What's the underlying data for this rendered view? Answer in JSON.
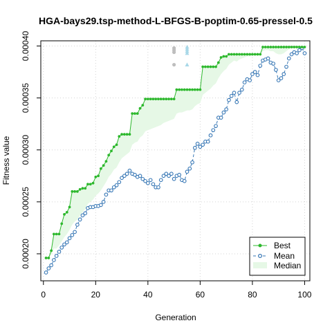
{
  "chart_data": {
    "type": "line",
    "title": "HGA-bays29.tsp-method-L-BFGS-B-poptim-0.65-pressel-0.5",
    "xlabel": "Generation",
    "ylabel": "Fitness value",
    "xlim": [
      -1,
      102
    ],
    "ylim": [
      0.000174,
      0.000405
    ],
    "x_ticks": [
      0,
      20,
      40,
      60,
      80,
      100
    ],
    "x_tick_labels": [
      "0",
      "20",
      "40",
      "60",
      "80",
      "100"
    ],
    "y_ticks": [
      0.0002,
      0.00025,
      0.0003,
      0.00035,
      0.0004
    ],
    "y_tick_labels": [
      "0.00020",
      "0.00025",
      "0.00030",
      "0.00035",
      "0.00040"
    ],
    "grid": true,
    "legend_position": "bottom-right",
    "legend": [
      {
        "label": "Best",
        "color": "#2db82d"
      },
      {
        "label": "Mean",
        "color": "#3777b5"
      },
      {
        "label": "Median",
        "color": "#e6f8e6"
      }
    ],
    "x": [
      1,
      2,
      3,
      4,
      5,
      6,
      7,
      8,
      9,
      10,
      11,
      12,
      13,
      14,
      15,
      16,
      17,
      18,
      19,
      20,
      21,
      22,
      23,
      24,
      25,
      26,
      27,
      28,
      29,
      30,
      31,
      32,
      33,
      34,
      35,
      36,
      37,
      38,
      39,
      40,
      41,
      42,
      43,
      44,
      45,
      46,
      47,
      48,
      49,
      50,
      51,
      52,
      53,
      54,
      55,
      56,
      57,
      58,
      59,
      60,
      61,
      62,
      63,
      64,
      65,
      66,
      67,
      68,
      69,
      70,
      71,
      72,
      73,
      74,
      75,
      76,
      77,
      78,
      79,
      80,
      81,
      82,
      83,
      84,
      85,
      86,
      87,
      88,
      89,
      90,
      91,
      92,
      93,
      94,
      95,
      96,
      97,
      98,
      99,
      100
    ],
    "series": [
      {
        "name": "Best",
        "color": "#2db82d",
        "values": [
          0.000196,
          0.000196,
          0.000203,
          0.000219,
          0.000219,
          0.000219,
          0.000229,
          0.000238,
          0.00024,
          0.000245,
          0.00026,
          0.00026,
          0.00026,
          0.000262,
          0.000263,
          0.000263,
          0.000267,
          0.000267,
          0.000268,
          0.000274,
          0.000275,
          0.000282,
          0.000285,
          0.000289,
          0.000295,
          0.000299,
          0.000303,
          0.000305,
          0.000313,
          0.000315,
          0.000315,
          0.000315,
          0.000315,
          0.000335,
          0.000335,
          0.000335,
          0.00034,
          0.000343,
          0.000349,
          0.000349,
          0.000349,
          0.000349,
          0.000349,
          0.000349,
          0.000349,
          0.000349,
          0.000349,
          0.000349,
          0.000349,
          0.000349,
          0.000358,
          0.000358,
          0.000358,
          0.000358,
          0.000358,
          0.000358,
          0.000358,
          0.000358,
          0.000358,
          0.000358,
          0.00038,
          0.00038,
          0.00038,
          0.00038,
          0.00038,
          0.00038,
          0.000384,
          0.000389,
          0.00039,
          0.00039,
          0.000392,
          0.000392,
          0.000392,
          0.000392,
          0.000392,
          0.000392,
          0.000392,
          0.000392,
          0.000392,
          0.000392,
          0.000392,
          0.000392,
          0.000392,
          0.000399,
          0.000399,
          0.000399,
          0.000399,
          0.000399,
          0.000399,
          0.000399,
          0.000399,
          0.000399,
          0.000399,
          0.000399,
          0.000399,
          0.000399,
          0.000399,
          0.000399,
          0.000399,
          0.000399
        ]
      },
      {
        "name": "Mean",
        "color": "#3777b5",
        "values": [
          0.000182,
          0.000186,
          0.000189,
          0.000194,
          0.000198,
          0.000202,
          0.000206,
          0.000209,
          0.000211,
          0.000215,
          0.000218,
          0.000221,
          0.000228,
          0.000233,
          0.000237,
          0.000239,
          0.000244,
          0.000245,
          0.000245,
          0.000246,
          0.000246,
          0.000247,
          0.00025,
          0.000257,
          0.000261,
          0.000261,
          0.000264,
          0.000266,
          0.000269,
          0.000273,
          0.000275,
          0.000277,
          0.00028,
          0.000277,
          0.000276,
          0.000274,
          0.000275,
          0.000272,
          0.00027,
          0.000268,
          0.000271,
          0.000267,
          0.000264,
          0.000264,
          0.000271,
          0.000275,
          0.000277,
          0.000275,
          0.000277,
          0.000272,
          0.000275,
          0.000276,
          0.000271,
          0.00027,
          0.000279,
          0.000282,
          0.000288,
          0.000302,
          0.000306,
          0.000303,
          0.000305,
          0.000308,
          0.000308,
          0.000314,
          0.000319,
          0.000323,
          0.000331,
          0.000331,
          0.000336,
          0.000339,
          0.000348,
          0.000352,
          0.000355,
          0.000346,
          0.000355,
          0.000358,
          0.000365,
          0.000368,
          0.000367,
          0.000373,
          0.000375,
          0.000372,
          0.000381,
          0.000386,
          0.000387,
          0.000388,
          0.000384,
          0.000383,
          0.000377,
          0.000367,
          0.000369,
          0.000373,
          0.00038,
          0.000388,
          0.000392,
          0.000394,
          0.000393,
          0.000396,
          0.000398,
          0.000393
        ]
      },
      {
        "name": "Median",
        "color": "#e6f8e6",
        "values": [
          0.000196,
          0.000196,
          0.000199,
          0.000205,
          0.000205,
          0.000208,
          0.000212,
          0.000216,
          0.000219,
          0.000223,
          0.000228,
          0.000231,
          0.000233,
          0.000237,
          0.00024,
          0.000243,
          0.000248,
          0.00025,
          0.000252,
          0.000256,
          0.000258,
          0.000261,
          0.000265,
          0.000269,
          0.000274,
          0.000277,
          0.000281,
          0.000283,
          0.000288,
          0.000292,
          0.000294,
          0.000296,
          0.000298,
          0.000305,
          0.000307,
          0.000308,
          0.000312,
          0.000314,
          0.000318,
          0.000319,
          0.00032,
          0.000321,
          0.000322,
          0.000323,
          0.000324,
          0.000326,
          0.000327,
          0.000328,
          0.000329,
          0.00033,
          0.000335,
          0.000336,
          0.000336,
          0.000337,
          0.000338,
          0.000338,
          0.000339,
          0.000342,
          0.000344,
          0.000345,
          0.000353,
          0.000355,
          0.000357,
          0.000359,
          0.000362,
          0.000364,
          0.000369,
          0.000373,
          0.000376,
          0.000378,
          0.000382,
          0.000384,
          0.000386,
          0.000385,
          0.000387,
          0.000388,
          0.000389,
          0.00039,
          0.00039,
          0.000391,
          0.000391,
          0.000391,
          0.000392,
          0.000395,
          0.000396,
          0.000396,
          0.000395,
          0.000395,
          0.000393,
          0.000392,
          0.000392,
          0.000393,
          0.000395,
          0.000397,
          0.000398,
          0.000398,
          0.000398,
          0.000399,
          0.000399,
          0.000398
        ]
      }
    ],
    "outliers": [
      {
        "x": 50,
        "y": 0.000398,
        "shape": "circle",
        "color": "#bebebe"
      },
      {
        "x": 50,
        "y": 0.000396,
        "shape": "circle",
        "color": "#bebebe"
      },
      {
        "x": 50,
        "y": 0.000394,
        "shape": "circle",
        "color": "#bebebe"
      },
      {
        "x": 50,
        "y": 0.000382,
        "shape": "circle",
        "color": "#bebebe"
      },
      {
        "x": 55,
        "y": 0.000399,
        "shape": "triangle",
        "color": "#a8d8e8"
      },
      {
        "x": 55,
        "y": 0.000397,
        "shape": "triangle",
        "color": "#a8d8e8"
      },
      {
        "x": 55,
        "y": 0.000395,
        "shape": "triangle",
        "color": "#a8d8e8"
      },
      {
        "x": 55,
        "y": 0.000393,
        "shape": "triangle",
        "color": "#a8d8e8"
      },
      {
        "x": 55,
        "y": 0.000382,
        "shape": "triangle",
        "color": "#a8d8e8"
      }
    ]
  }
}
